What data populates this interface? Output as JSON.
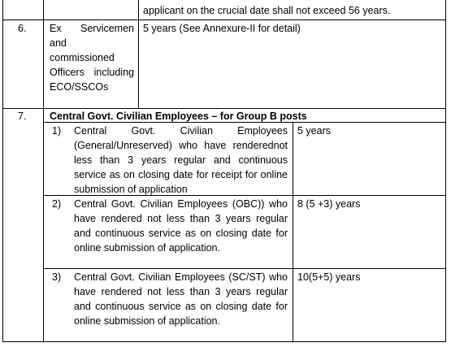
{
  "rows": [
    {
      "age_relaxation": "applicant on the crucial date shall not exceed 56 years."
    },
    {
      "number": "6.",
      "category": "Ex Servicemen and commissioned Officers including ECO/SSCOs",
      "age_relaxation": "5 years (See Annexure-II for detail)"
    },
    {
      "number": "7.",
      "category": "Central Govt. Civilian Employees – for Group B posts",
      "subrows": [
        {
          "number": "1)",
          "category": "Central Govt. Civilian Employees (General/Unreserved) who have renderednot less than 3 years regular and continuous service as on closing date for receipt for online submission of application",
          "age_relaxation": "5 years"
        },
        {
          "number": "2)",
          "category": "Central Govt. Civilian Employees (OBC)) who have rendered not less than 3 years regular and continuous service as on closing date for online submission of application.",
          "age_relaxation": "8 (5 +3) years"
        },
        {
          "number": "3)",
          "category": "Central Govt. Civilian Employees (SC/ST) who have rendered not less than 3 years regular and continuous service as on closing date for online submission of application.",
          "age_relaxation": "10(5+5) years"
        }
      ]
    }
  ]
}
